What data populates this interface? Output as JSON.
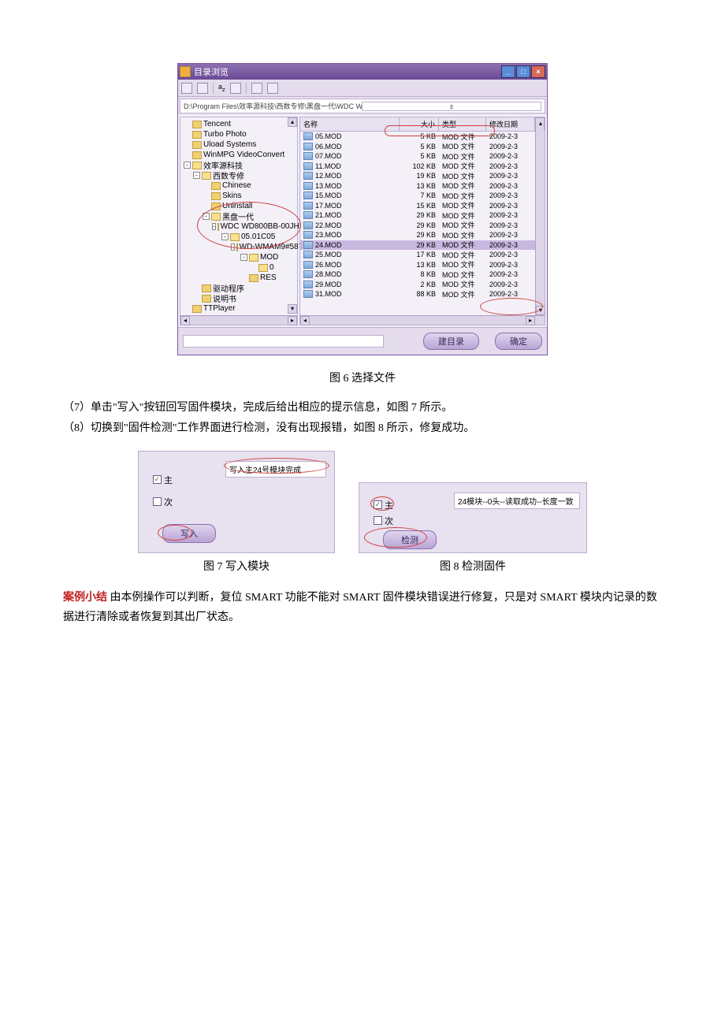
{
  "fig6": {
    "window_title": "目录浏览",
    "path": "D:\\Program Files\\效率源科技\\西数专修\\黑盘一代\\WDC WD800BB-00JHC0\\05.01C05\\WD-WMAM9#587436\\MOD\\0",
    "tree": [
      {
        "pad": 4,
        "pm": "",
        "icon": "f",
        "label": "Tencent"
      },
      {
        "pad": 4,
        "pm": "",
        "icon": "f",
        "label": "Turbo Photo"
      },
      {
        "pad": 4,
        "pm": "",
        "icon": "f",
        "label": "Uload Systems"
      },
      {
        "pad": 4,
        "pm": "",
        "icon": "f",
        "label": "WinMPG VideoConvert"
      },
      {
        "pad": 4,
        "pm": "-",
        "icon": "fo",
        "label": "效率源科技"
      },
      {
        "pad": 16,
        "pm": "-",
        "icon": "fo",
        "label": "西数专修"
      },
      {
        "pad": 28,
        "pm": "",
        "icon": "f",
        "label": "Chinese"
      },
      {
        "pad": 28,
        "pm": "",
        "icon": "f",
        "label": "Skins"
      },
      {
        "pad": 28,
        "pm": "",
        "icon": "f",
        "label": "Uninstall"
      },
      {
        "pad": 28,
        "pm": "-",
        "icon": "fo",
        "label": "黑盘一代"
      },
      {
        "pad": 40,
        "pm": "-",
        "icon": "fo",
        "label": "WDC WD800BB-00JHC0"
      },
      {
        "pad": 52,
        "pm": "-",
        "icon": "fo",
        "label": "05.01C05"
      },
      {
        "pad": 64,
        "pm": "-",
        "icon": "fo",
        "label": "WD-WMAM9#587436"
      },
      {
        "pad": 76,
        "pm": "-",
        "icon": "fo",
        "label": "MOD"
      },
      {
        "pad": 88,
        "pm": "",
        "icon": "fo",
        "label": "0"
      },
      {
        "pad": 76,
        "pm": "",
        "icon": "f",
        "label": "RES"
      },
      {
        "pad": 16,
        "pm": "",
        "icon": "f",
        "label": "驱动程序"
      },
      {
        "pad": 16,
        "pm": "",
        "icon": "f",
        "label": "说明书"
      },
      {
        "pad": 4,
        "pm": "",
        "icon": "f",
        "label": "TTPlayer"
      }
    ],
    "columns": {
      "c1": "名称",
      "c2": "大小",
      "c3": "类型",
      "c4": "修改日期"
    },
    "rows": [
      {
        "n": "05.MOD",
        "s": "5 KB",
        "t": "MOD 文件",
        "d": "2009-2-3"
      },
      {
        "n": "06.MOD",
        "s": "5 KB",
        "t": "MOD 文件",
        "d": "2009-2-3"
      },
      {
        "n": "07.MOD",
        "s": "5 KB",
        "t": "MOD 文件",
        "d": "2009-2-3"
      },
      {
        "n": "11.MOD",
        "s": "102 KB",
        "t": "MOD 文件",
        "d": "2009-2-3"
      },
      {
        "n": "12.MOD",
        "s": "19 KB",
        "t": "MOD 文件",
        "d": "2009-2-3"
      },
      {
        "n": "13.MOD",
        "s": "13 KB",
        "t": "MOD 文件",
        "d": "2009-2-3"
      },
      {
        "n": "15.MOD",
        "s": "7 KB",
        "t": "MOD 文件",
        "d": "2009-2-3"
      },
      {
        "n": "17.MOD",
        "s": "15 KB",
        "t": "MOD 文件",
        "d": "2009-2-3"
      },
      {
        "n": "21.MOD",
        "s": "29 KB",
        "t": "MOD 文件",
        "d": "2009-2-3"
      },
      {
        "n": "22.MOD",
        "s": "29 KB",
        "t": "MOD 文件",
        "d": "2009-2-3"
      },
      {
        "n": "23.MOD",
        "s": "29 KB",
        "t": "MOD 文件",
        "d": "2009-2-3"
      },
      {
        "n": "24.MOD",
        "s": "29 KB",
        "t": "MOD 文件",
        "d": "2009-2-3",
        "sel": true
      },
      {
        "n": "25.MOD",
        "s": "17 KB",
        "t": "MOD 文件",
        "d": "2009-2-3"
      },
      {
        "n": "26.MOD",
        "s": "13 KB",
        "t": "MOD 文件",
        "d": "2009-2-3"
      },
      {
        "n": "28.MOD",
        "s": "8 KB",
        "t": "MOD 文件",
        "d": "2009-2-3"
      },
      {
        "n": "29.MOD",
        "s": "2 KB",
        "t": "MOD 文件",
        "d": "2009-2-3"
      },
      {
        "n": "31.MOD",
        "s": "88 KB",
        "t": "MOD 文件",
        "d": "2009-2-3"
      }
    ],
    "btn_rootdir": "建目录",
    "btn_ok": "确定",
    "caption": "图 6   选择文件"
  },
  "step7": "（7）单击\"写入\"按钮回写固件模块，完成后给出相应的提示信息，如图 7 所示。",
  "step8": "（8）切换到\"固件检测\"工作界面进行检测，没有出现报错，如图 8 所示，修复成功。",
  "fig7": {
    "chk_main": "主",
    "chk_sub": "次",
    "msg": "写入主24号模块完成",
    "btn": "写入",
    "caption": "图 7   写入模块"
  },
  "fig8": {
    "chk_main": "主",
    "chk_sub": "次",
    "msg": "24模块--0头--读取成功--长度一致",
    "btn": "检测",
    "caption": "图 8   检测固件"
  },
  "summary_label": "案例小结",
  "summary_text": "由本例操作可以判断，复位 SMART 功能不能对 SMART 固件模块错误进行修复，只是对 SMART 模块内记录的数据进行清除或者恢复到其出厂状态。"
}
